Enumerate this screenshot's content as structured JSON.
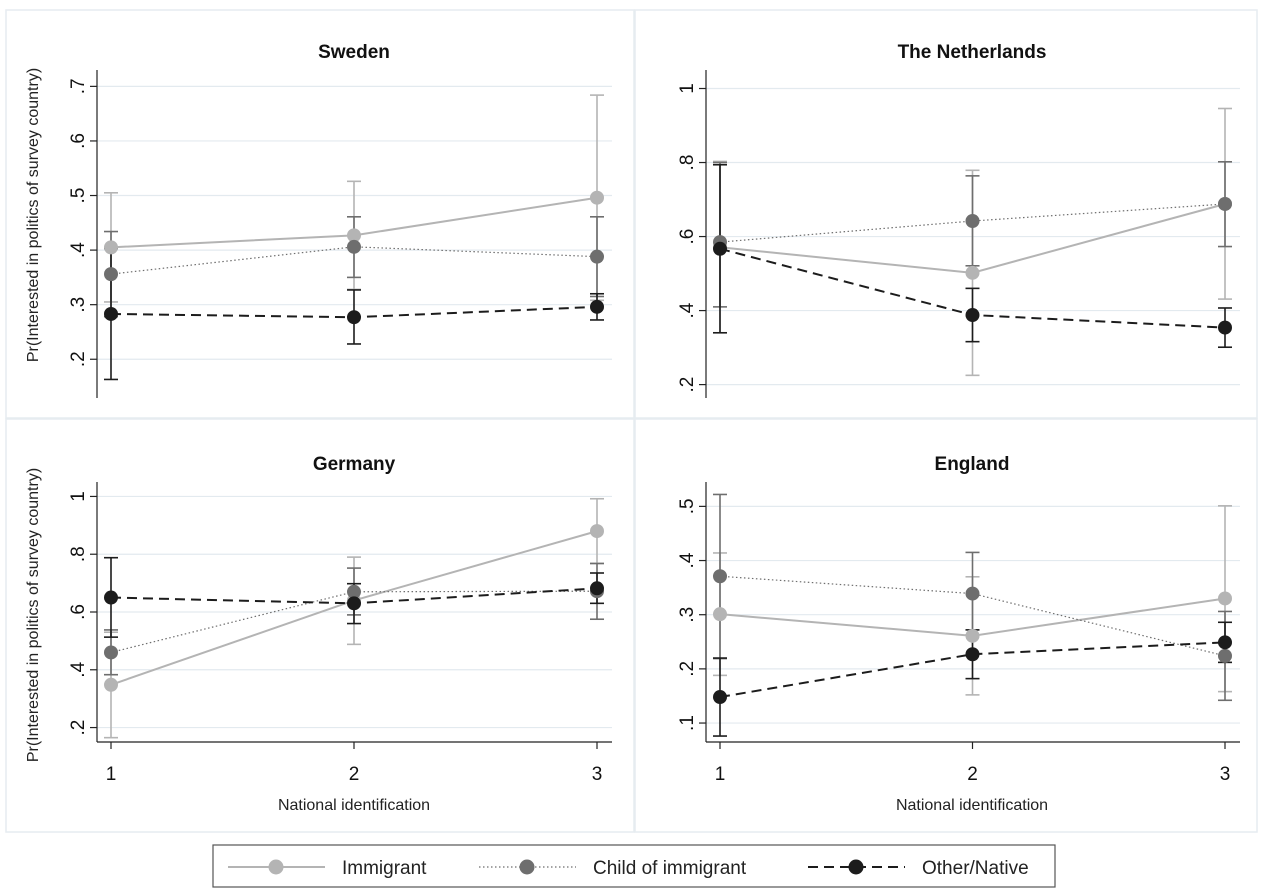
{
  "y_axis_title": "Pr(Interested in politics of survey country)",
  "x_axis_title": "National identification",
  "legend": [
    {
      "label": "Immigrant",
      "color": "#b4b4b4",
      "dash": "solid"
    },
    {
      "label": "Child of immigrant",
      "color": "#6e6e6e",
      "dash": "dotted"
    },
    {
      "label": "Other/Native",
      "color": "#1c1c1c",
      "dash": "dashed"
    }
  ],
  "chart_data": [
    {
      "type": "line",
      "title": "Sweden",
      "x": [
        1,
        2,
        3
      ],
      "xticks": [
        "1",
        "2",
        "3"
      ],
      "ylim": [
        0.14,
        0.73
      ],
      "yticks": [
        0.2,
        0.3,
        0.4,
        0.5,
        0.6,
        0.7
      ],
      "ytick_labels": [
        ".2",
        ".3",
        ".4",
        ".5",
        ".6",
        ".7"
      ],
      "series": [
        {
          "name": "Immigrant",
          "values": [
            0.405,
            0.427,
            0.496
          ],
          "lower": [
            0.305,
            0.328,
            0.308
          ],
          "upper": [
            0.505,
            0.526,
            0.684
          ]
        },
        {
          "name": "Child of immigrant",
          "values": [
            0.356,
            0.406,
            0.388
          ],
          "lower": [
            0.278,
            0.35,
            0.315
          ],
          "upper": [
            0.434,
            0.461,
            0.461
          ]
        },
        {
          "name": "Other/Native",
          "values": [
            0.283,
            0.277,
            0.296
          ],
          "lower": [
            0.163,
            0.228,
            0.272
          ],
          "upper": [
            0.403,
            0.327,
            0.32
          ]
        }
      ]
    },
    {
      "type": "line",
      "title": "The Netherlands",
      "x": [
        1,
        2,
        3
      ],
      "xticks": [
        "1",
        "2",
        "3"
      ],
      "ylim": [
        0.18,
        1.05
      ],
      "yticks": [
        0.2,
        0.4,
        0.6,
        0.8,
        1.0
      ],
      "ytick_labels": [
        ".2",
        ".4",
        ".6",
        ".8",
        "1"
      ],
      "series": [
        {
          "name": "Immigrant",
          "values": [
            0.571,
            0.502,
            0.688
          ],
          "lower": [
            0.34,
            0.225,
            0.431
          ],
          "upper": [
            0.803,
            0.779,
            0.946
          ]
        },
        {
          "name": "Child of immigrant",
          "values": [
            0.585,
            0.642,
            0.688
          ],
          "lower": [
            0.41,
            0.521,
            0.573
          ],
          "upper": [
            0.8,
            0.764,
            0.802
          ]
        },
        {
          "name": "Other/Native",
          "values": [
            0.567,
            0.388,
            0.354
          ],
          "lower": [
            0.34,
            0.316,
            0.301
          ],
          "upper": [
            0.794,
            0.46,
            0.407
          ]
        }
      ]
    },
    {
      "type": "line",
      "title": "Germany",
      "x": [
        1,
        2,
        3
      ],
      "xticks": [
        "1",
        "2",
        "3"
      ],
      "ylim": [
        0.15,
        1.05
      ],
      "yticks": [
        0.2,
        0.4,
        0.6,
        0.8,
        1.0
      ],
      "ytick_labels": [
        ".2",
        ".4",
        ".6",
        ".8",
        "1"
      ],
      "series": [
        {
          "name": "Immigrant",
          "values": [
            0.348,
            0.64,
            0.88
          ],
          "lower": [
            0.165,
            0.488,
            0.768
          ],
          "upper": [
            0.53,
            0.79,
            0.992
          ]
        },
        {
          "name": "Child of immigrant",
          "values": [
            0.46,
            0.67,
            0.672
          ],
          "lower": [
            0.383,
            0.59,
            0.575
          ],
          "upper": [
            0.538,
            0.752,
            0.768
          ]
        },
        {
          "name": "Other/Native",
          "values": [
            0.65,
            0.63,
            0.682
          ],
          "lower": [
            0.513,
            0.56,
            0.63
          ],
          "upper": [
            0.788,
            0.698,
            0.735
          ]
        }
      ]
    },
    {
      "type": "line",
      "title": "England",
      "x": [
        1,
        2,
        3
      ],
      "xticks": [
        "1",
        "2",
        "3"
      ],
      "ylim": [
        0.065,
        0.545
      ],
      "yticks": [
        0.1,
        0.2,
        0.3,
        0.4,
        0.5
      ],
      "ytick_labels": [
        ".1",
        ".2",
        ".3",
        ".4",
        ".5"
      ],
      "series": [
        {
          "name": "Immigrant",
          "values": [
            0.301,
            0.261,
            0.33
          ],
          "lower": [
            0.188,
            0.152,
            0.158
          ],
          "upper": [
            0.414,
            0.37,
            0.501
          ]
        },
        {
          "name": "Child of immigrant",
          "values": [
            0.371,
            0.339,
            0.224
          ],
          "lower": [
            0.219,
            0.263,
            0.142
          ],
          "upper": [
            0.522,
            0.415,
            0.306
          ]
        },
        {
          "name": "Other/Native",
          "values": [
            0.148,
            0.227,
            0.249
          ],
          "lower": [
            0.076,
            0.182,
            0.212
          ],
          "upper": [
            0.22,
            0.272,
            0.286
          ]
        }
      ]
    }
  ]
}
